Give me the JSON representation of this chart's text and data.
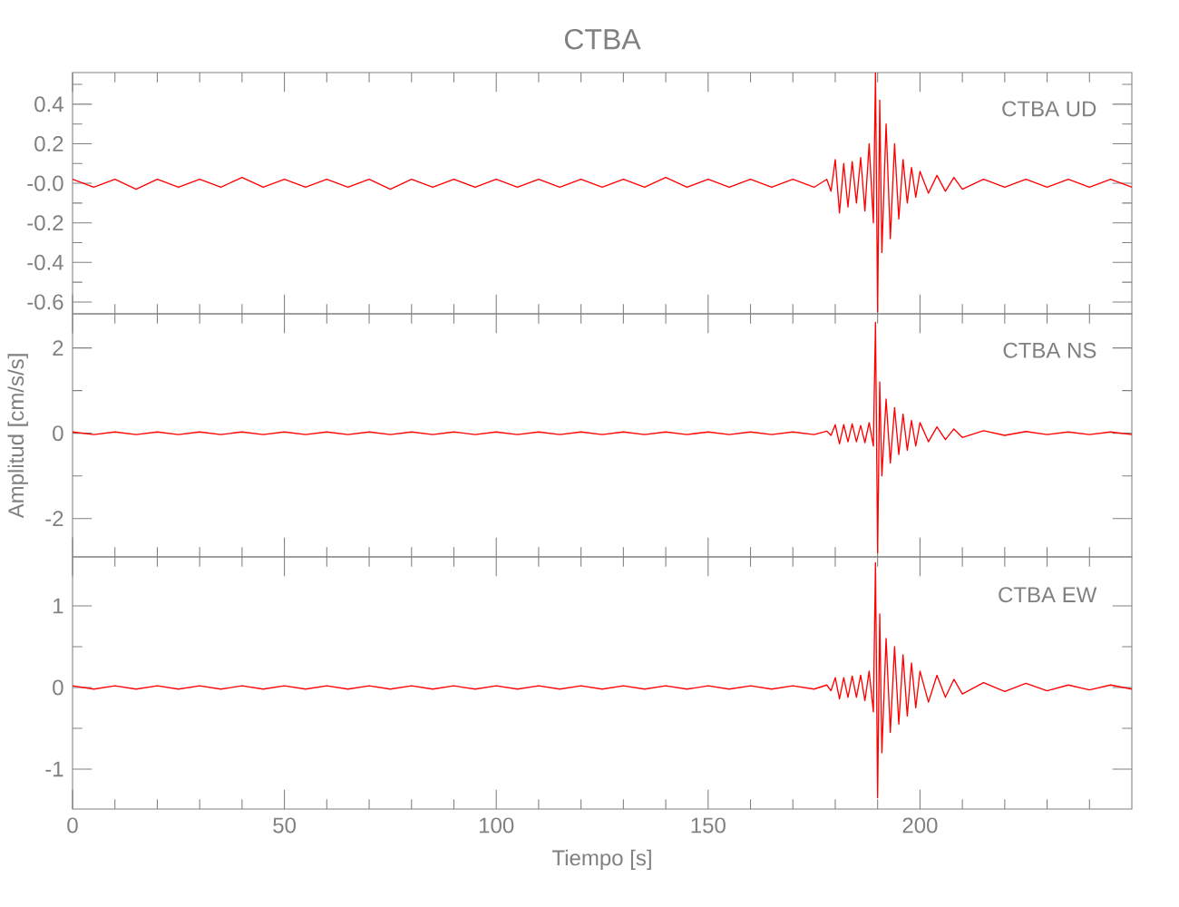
{
  "chart_data": [
    {
      "type": "line",
      "title": "CTBA",
      "annotations": [
        "CTBA   UD"
      ],
      "tick_labels": "y",
      "color": "#ff0000",
      "xlim": [
        0,
        250
      ],
      "xticks": [
        0,
        {
          "value": 10,
          "label": null
        },
        {
          "value": 20,
          "label": null
        },
        {
          "value": 30,
          "label": null
        },
        {
          "value": 40,
          "label": null
        },
        50,
        {
          "value": 60,
          "label": null
        },
        {
          "value": 70,
          "label": null
        },
        {
          "value": 80,
          "label": null
        },
        {
          "value": 90,
          "label": null
        },
        100,
        {
          "value": 110,
          "label": null
        },
        {
          "value": 120,
          "label": null
        },
        {
          "value": 130,
          "label": null
        },
        {
          "value": 140,
          "label": null
        },
        150,
        {
          "value": 160,
          "label": null
        },
        {
          "value": 170,
          "label": null
        },
        {
          "value": 180,
          "label": null
        },
        {
          "value": 190,
          "label": null
        },
        200,
        {
          "value": 210,
          "label": null
        },
        {
          "value": 220,
          "label": null
        },
        {
          "value": 230,
          "label": null
        },
        {
          "value": 240,
          "label": null
        }
      ],
      "ylim": [
        -0.66,
        0.56
      ],
      "yticks": [
        -0.6,
        {
          "value": -0.5,
          "label": null
        },
        -0.4,
        {
          "value": -0.3,
          "label": null
        },
        -0.2,
        {
          "value": -0.1,
          "label": null
        },
        {
          "value": 0,
          "label": "-0.0"
        },
        {
          "value": 0.1,
          "label": null
        },
        0.2,
        {
          "value": 0.3,
          "label": null
        },
        0.4,
        {
          "value": 0.5,
          "label": null
        }
      ],
      "x": [
        0,
        5,
        10,
        15,
        20,
        25,
        30,
        35,
        40,
        45,
        50,
        55,
        60,
        65,
        70,
        75,
        80,
        85,
        90,
        95,
        100,
        105,
        110,
        115,
        120,
        125,
        130,
        135,
        140,
        145,
        150,
        155,
        160,
        165,
        170,
        175,
        178,
        179,
        180,
        181,
        182,
        183,
        184,
        185,
        186,
        187,
        188,
        189,
        189.5,
        190,
        190.5,
        191,
        192,
        193,
        194,
        195,
        196,
        197,
        198,
        199,
        200,
        202,
        204,
        206,
        208,
        210,
        215,
        220,
        225,
        230,
        235,
        240,
        245,
        250
      ],
      "values": [
        0.02,
        -0.02,
        0.02,
        -0.03,
        0.02,
        -0.02,
        0.02,
        -0.02,
        0.03,
        -0.02,
        0.02,
        -0.02,
        0.02,
        -0.02,
        0.02,
        -0.03,
        0.02,
        -0.02,
        0.02,
        -0.02,
        0.02,
        -0.02,
        0.02,
        -0.02,
        0.02,
        -0.02,
        0.02,
        -0.02,
        0.03,
        -0.02,
        0.02,
        -0.02,
        0.02,
        -0.02,
        0.02,
        -0.02,
        0.02,
        -0.04,
        0.12,
        -0.15,
        0.1,
        -0.12,
        0.11,
        -0.1,
        0.13,
        -0.14,
        0.2,
        -0.2,
        0.56,
        -0.65,
        0.42,
        -0.35,
        0.3,
        -0.28,
        0.2,
        -0.18,
        0.12,
        -0.1,
        0.08,
        -0.07,
        0.06,
        -0.05,
        0.04,
        -0.04,
        0.03,
        -0.03,
        0.02,
        -0.02,
        0.02,
        -0.02,
        0.02,
        -0.02,
        0.02,
        -0.02
      ]
    },
    {
      "type": "line",
      "ylabel": "Amplitud [cm/s/s]",
      "annotations": [
        "CTBA   NS"
      ],
      "tick_labels": "y",
      "color": "#ff0000",
      "xlim": [
        0,
        250
      ],
      "xticks": [
        0,
        {
          "value": 10,
          "label": null
        },
        {
          "value": 20,
          "label": null
        },
        {
          "value": 30,
          "label": null
        },
        {
          "value": 40,
          "label": null
        },
        50,
        {
          "value": 60,
          "label": null
        },
        {
          "value": 70,
          "label": null
        },
        {
          "value": 80,
          "label": null
        },
        {
          "value": 90,
          "label": null
        },
        100,
        {
          "value": 110,
          "label": null
        },
        {
          "value": 120,
          "label": null
        },
        {
          "value": 130,
          "label": null
        },
        {
          "value": 140,
          "label": null
        },
        150,
        {
          "value": 160,
          "label": null
        },
        {
          "value": 170,
          "label": null
        },
        {
          "value": 180,
          "label": null
        },
        {
          "value": 190,
          "label": null
        },
        200,
        {
          "value": 210,
          "label": null
        },
        {
          "value": 220,
          "label": null
        },
        {
          "value": 230,
          "label": null
        },
        {
          "value": 240,
          "label": null
        }
      ],
      "ylim": [
        -2.9,
        2.8
      ],
      "yticks": [
        -2,
        {
          "value": -1,
          "label": null
        },
        0,
        {
          "value": 1,
          "label": null
        },
        2
      ],
      "x": [
        0,
        5,
        10,
        15,
        20,
        25,
        30,
        35,
        40,
        45,
        50,
        55,
        60,
        65,
        70,
        75,
        80,
        85,
        90,
        95,
        100,
        105,
        110,
        115,
        120,
        125,
        130,
        135,
        140,
        145,
        150,
        155,
        160,
        165,
        170,
        175,
        178,
        179,
        180,
        181,
        182,
        183,
        184,
        185,
        186,
        187,
        188,
        189,
        189.5,
        190,
        190.5,
        191,
        192,
        193,
        194,
        195,
        196,
        197,
        198,
        199,
        200,
        202,
        204,
        206,
        208,
        210,
        215,
        220,
        225,
        230,
        235,
        240,
        245,
        250
      ],
      "values": [
        0.03,
        -0.03,
        0.03,
        -0.03,
        0.03,
        -0.03,
        0.03,
        -0.03,
        0.03,
        -0.03,
        0.03,
        -0.03,
        0.03,
        -0.03,
        0.03,
        -0.03,
        0.03,
        -0.03,
        0.03,
        -0.03,
        0.03,
        -0.03,
        0.03,
        -0.03,
        0.03,
        -0.03,
        0.03,
        -0.03,
        0.03,
        -0.03,
        0.03,
        -0.03,
        0.03,
        -0.03,
        0.03,
        -0.03,
        0.05,
        -0.05,
        0.2,
        -0.25,
        0.2,
        -0.2,
        0.22,
        -0.2,
        0.18,
        -0.22,
        0.25,
        -0.3,
        2.6,
        -2.8,
        1.2,
        -1.0,
        0.8,
        -0.7,
        0.6,
        -0.5,
        0.45,
        -0.4,
        0.3,
        -0.3,
        0.25,
        -0.2,
        0.15,
        -0.15,
        0.1,
        -0.1,
        0.06,
        -0.05,
        0.04,
        -0.03,
        0.03,
        -0.03,
        0.03,
        -0.03
      ]
    },
    {
      "type": "line",
      "xlabel": "Tiempo [s]",
      "annotations": [
        "CTBA   EW"
      ],
      "color": "#ff0000",
      "xlim": [
        0,
        250
      ],
      "xticks": [
        0,
        {
          "value": 10,
          "label": null
        },
        {
          "value": 20,
          "label": null
        },
        {
          "value": 30,
          "label": null
        },
        {
          "value": 40,
          "label": null
        },
        50,
        {
          "value": 60,
          "label": null
        },
        {
          "value": 70,
          "label": null
        },
        {
          "value": 80,
          "label": null
        },
        {
          "value": 90,
          "label": null
        },
        100,
        {
          "value": 110,
          "label": null
        },
        {
          "value": 120,
          "label": null
        },
        {
          "value": 130,
          "label": null
        },
        {
          "value": 140,
          "label": null
        },
        150,
        {
          "value": 160,
          "label": null
        },
        {
          "value": 170,
          "label": null
        },
        {
          "value": 180,
          "label": null
        },
        {
          "value": 190,
          "label": null
        },
        200,
        {
          "value": 210,
          "label": null
        },
        {
          "value": 220,
          "label": null
        },
        {
          "value": 230,
          "label": null
        },
        {
          "value": 240,
          "label": null
        }
      ],
      "ylim": [
        -1.49,
        1.6
      ],
      "yticks": [
        -1,
        {
          "value": -0.5,
          "label": null
        },
        0,
        {
          "value": 0.5,
          "label": null
        },
        1
      ],
      "x": [
        0,
        5,
        10,
        15,
        20,
        25,
        30,
        35,
        40,
        45,
        50,
        55,
        60,
        65,
        70,
        75,
        80,
        85,
        90,
        95,
        100,
        105,
        110,
        115,
        120,
        125,
        130,
        135,
        140,
        145,
        150,
        155,
        160,
        165,
        170,
        175,
        178,
        179,
        180,
        181,
        182,
        183,
        184,
        185,
        186,
        187,
        188,
        189,
        189.5,
        190,
        190.5,
        191,
        192,
        193,
        194,
        195,
        196,
        197,
        198,
        199,
        200,
        202,
        204,
        206,
        208,
        210,
        215,
        220,
        225,
        230,
        235,
        240,
        245,
        250
      ],
      "values": [
        0.02,
        -0.02,
        0.02,
        -0.02,
        0.02,
        -0.02,
        0.02,
        -0.02,
        0.02,
        -0.02,
        0.02,
        -0.02,
        0.02,
        -0.02,
        0.02,
        -0.02,
        0.02,
        -0.02,
        0.02,
        -0.02,
        0.02,
        -0.02,
        0.02,
        -0.02,
        0.02,
        -0.02,
        0.02,
        -0.02,
        0.02,
        -0.02,
        0.02,
        -0.02,
        0.02,
        -0.02,
        0.02,
        -0.02,
        0.03,
        -0.04,
        0.12,
        -0.14,
        0.12,
        -0.12,
        0.14,
        -0.12,
        0.15,
        -0.16,
        0.2,
        -0.3,
        1.53,
        -1.35,
        0.9,
        -0.8,
        0.6,
        -0.55,
        0.5,
        -0.45,
        0.4,
        -0.35,
        0.3,
        -0.25,
        0.2,
        -0.18,
        0.15,
        -0.12,
        0.1,
        -0.08,
        0.06,
        -0.05,
        0.05,
        -0.04,
        0.03,
        -0.03,
        0.03,
        -0.02
      ]
    }
  ]
}
